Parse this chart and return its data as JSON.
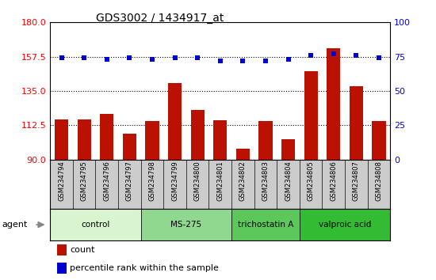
{
  "title": "GDS3002 / 1434917_at",
  "samples": [
    "GSM234794",
    "GSM234795",
    "GSM234796",
    "GSM234797",
    "GSM234798",
    "GSM234799",
    "GSM234800",
    "GSM234801",
    "GSM234802",
    "GSM234803",
    "GSM234804",
    "GSM234805",
    "GSM234806",
    "GSM234807",
    "GSM234808"
  ],
  "counts": [
    116.5,
    116.5,
    120.0,
    107.0,
    115.5,
    140.0,
    122.5,
    116.0,
    97.0,
    115.5,
    103.5,
    148.0,
    163.0,
    138.0,
    115.5
  ],
  "percentiles": [
    74,
    74,
    73,
    74,
    73,
    74,
    74,
    72,
    72,
    72,
    73,
    76,
    77,
    76,
    74
  ],
  "groups": [
    {
      "label": "control",
      "start": 0,
      "end": 4,
      "color": "#d8f5d0"
    },
    {
      "label": "MS-275",
      "start": 4,
      "end": 8,
      "color": "#90d890"
    },
    {
      "label": "trichostatin A",
      "start": 8,
      "end": 11,
      "color": "#5cc85c"
    },
    {
      "label": "valproic acid",
      "start": 11,
      "end": 15,
      "color": "#33bb33"
    }
  ],
  "ylim_left": [
    90,
    180
  ],
  "yticks_left": [
    90,
    112.5,
    135,
    157.5,
    180
  ],
  "ylim_right": [
    0,
    100
  ],
  "yticks_right": [
    0,
    25,
    50,
    75,
    100
  ],
  "bar_color": "#bb1100",
  "dot_color": "#0000cc",
  "sample_bg": "#cccccc",
  "plot_bg": "#ffffff",
  "grid_color": "#000000"
}
